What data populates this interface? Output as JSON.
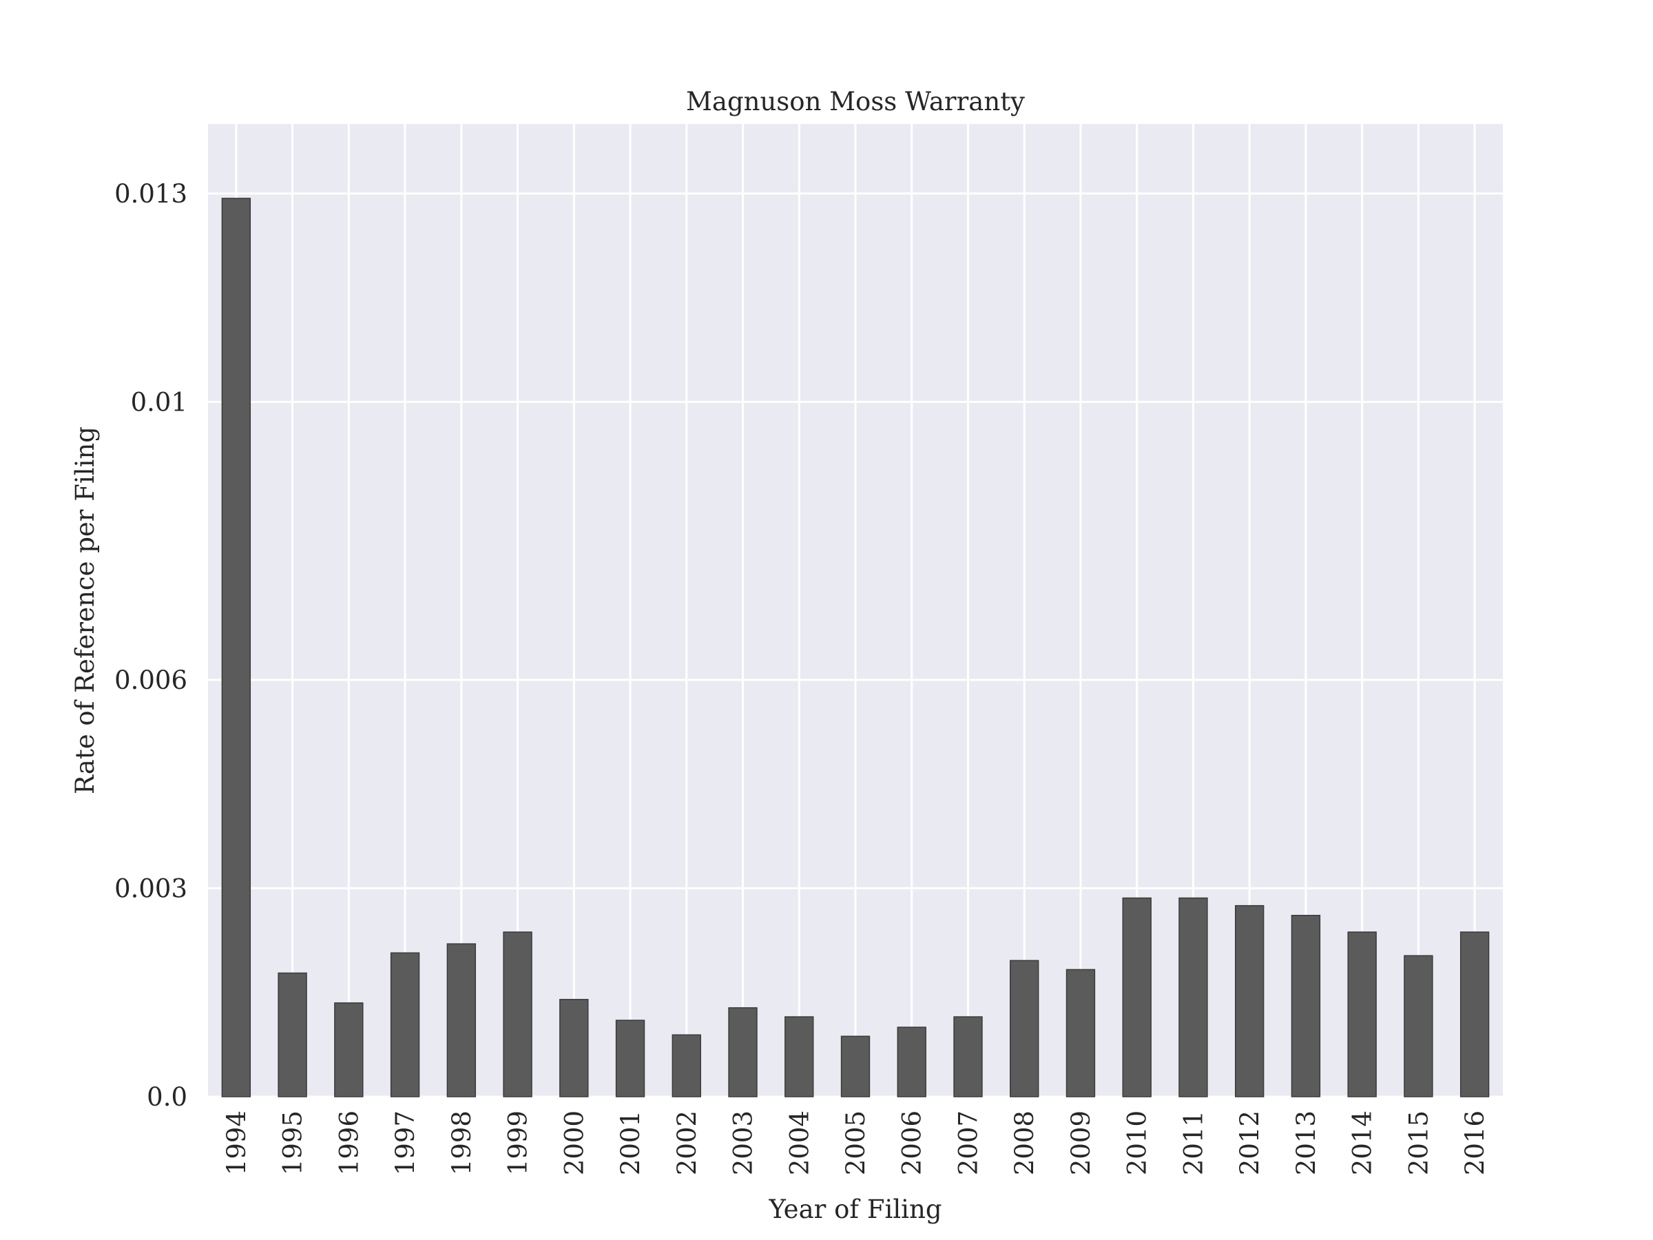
{
  "chart_data": {
    "type": "bar",
    "title": "Magnuson Moss Warranty",
    "xlabel": "Year of Filing",
    "ylabel": "Rate of Reference per Filing",
    "categories": [
      "1994",
      "1995",
      "1996",
      "1997",
      "1998",
      "1999",
      "2000",
      "2001",
      "2002",
      "2003",
      "2004",
      "2005",
      "2006",
      "2007",
      "2008",
      "2009",
      "2010",
      "2011",
      "2012",
      "2013",
      "2014",
      "2015",
      "2016"
    ],
    "values": [
      0.01293,
      0.00178,
      0.00135,
      0.00207,
      0.0022,
      0.00237,
      0.0014,
      0.0011,
      0.00089,
      0.00128,
      0.00115,
      0.00087,
      0.001,
      0.00115,
      0.00196,
      0.00183,
      0.00286,
      0.00286,
      0.00275,
      0.00261,
      0.00237,
      0.00203,
      0.00237
    ],
    "ylim": [
      0,
      0.014
    ],
    "yticks": [
      0.0,
      0.003,
      0.006,
      0.01,
      0.013
    ],
    "ytick_labels": [
      "0.0",
      "0.003",
      "0.006",
      "0.01",
      "0.013"
    ],
    "grid": true,
    "colors": {
      "bar": "#5b5b5b",
      "bar_edge": "#3a3a3a",
      "plot_bg": "#eaeaf2",
      "grid": "#ffffff",
      "text": "#262626"
    }
  }
}
